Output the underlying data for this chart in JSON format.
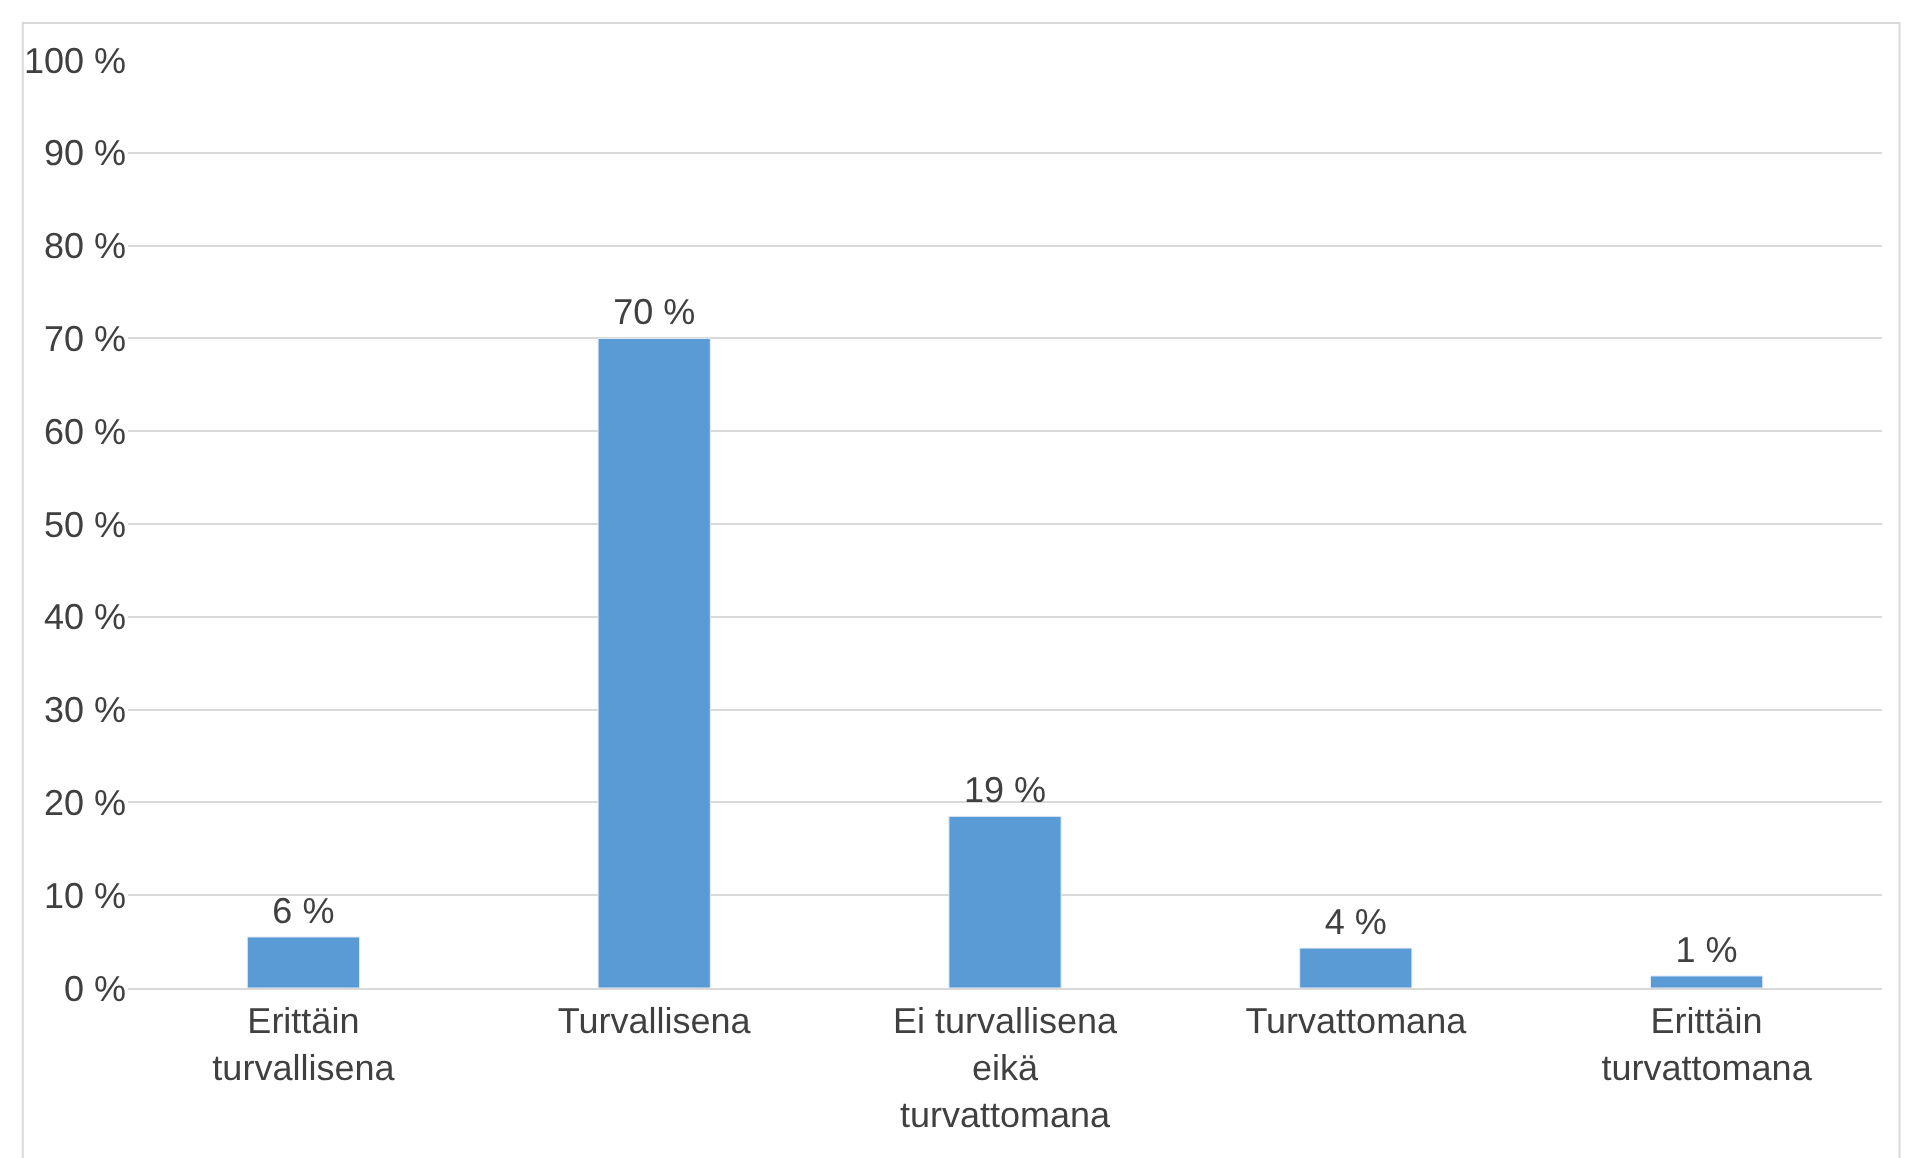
{
  "chart_data": {
    "type": "bar",
    "categories": [
      "Erittäin turvallisena",
      "Turvallisena",
      "Ei turvallisena eikä turvattomana",
      "Turvattomana",
      "Erittäin turvattomana"
    ],
    "values": [
      5.5,
      70,
      18.5,
      4.3,
      1.3
    ],
    "value_labels": [
      "6 %",
      "70 %",
      "19 %",
      "4 %",
      "1 %"
    ],
    "color": "#5b9bd5",
    "ylim": [
      0,
      100
    ],
    "yticks": [
      {
        "value": 0,
        "label": "0 %"
      },
      {
        "value": 10,
        "label": "10 %"
      },
      {
        "value": 20,
        "label": "20 %"
      },
      {
        "value": 30,
        "label": "30 %"
      },
      {
        "value": 40,
        "label": "40 %"
      },
      {
        "value": 50,
        "label": "50 %"
      },
      {
        "value": 60,
        "label": "60 %"
      },
      {
        "value": 70,
        "label": "70 %"
      },
      {
        "value": 80,
        "label": "80 %"
      },
      {
        "value": 90,
        "label": "90 %"
      },
      {
        "value": 100,
        "label": "100 %"
      }
    ],
    "grid": "y"
  }
}
